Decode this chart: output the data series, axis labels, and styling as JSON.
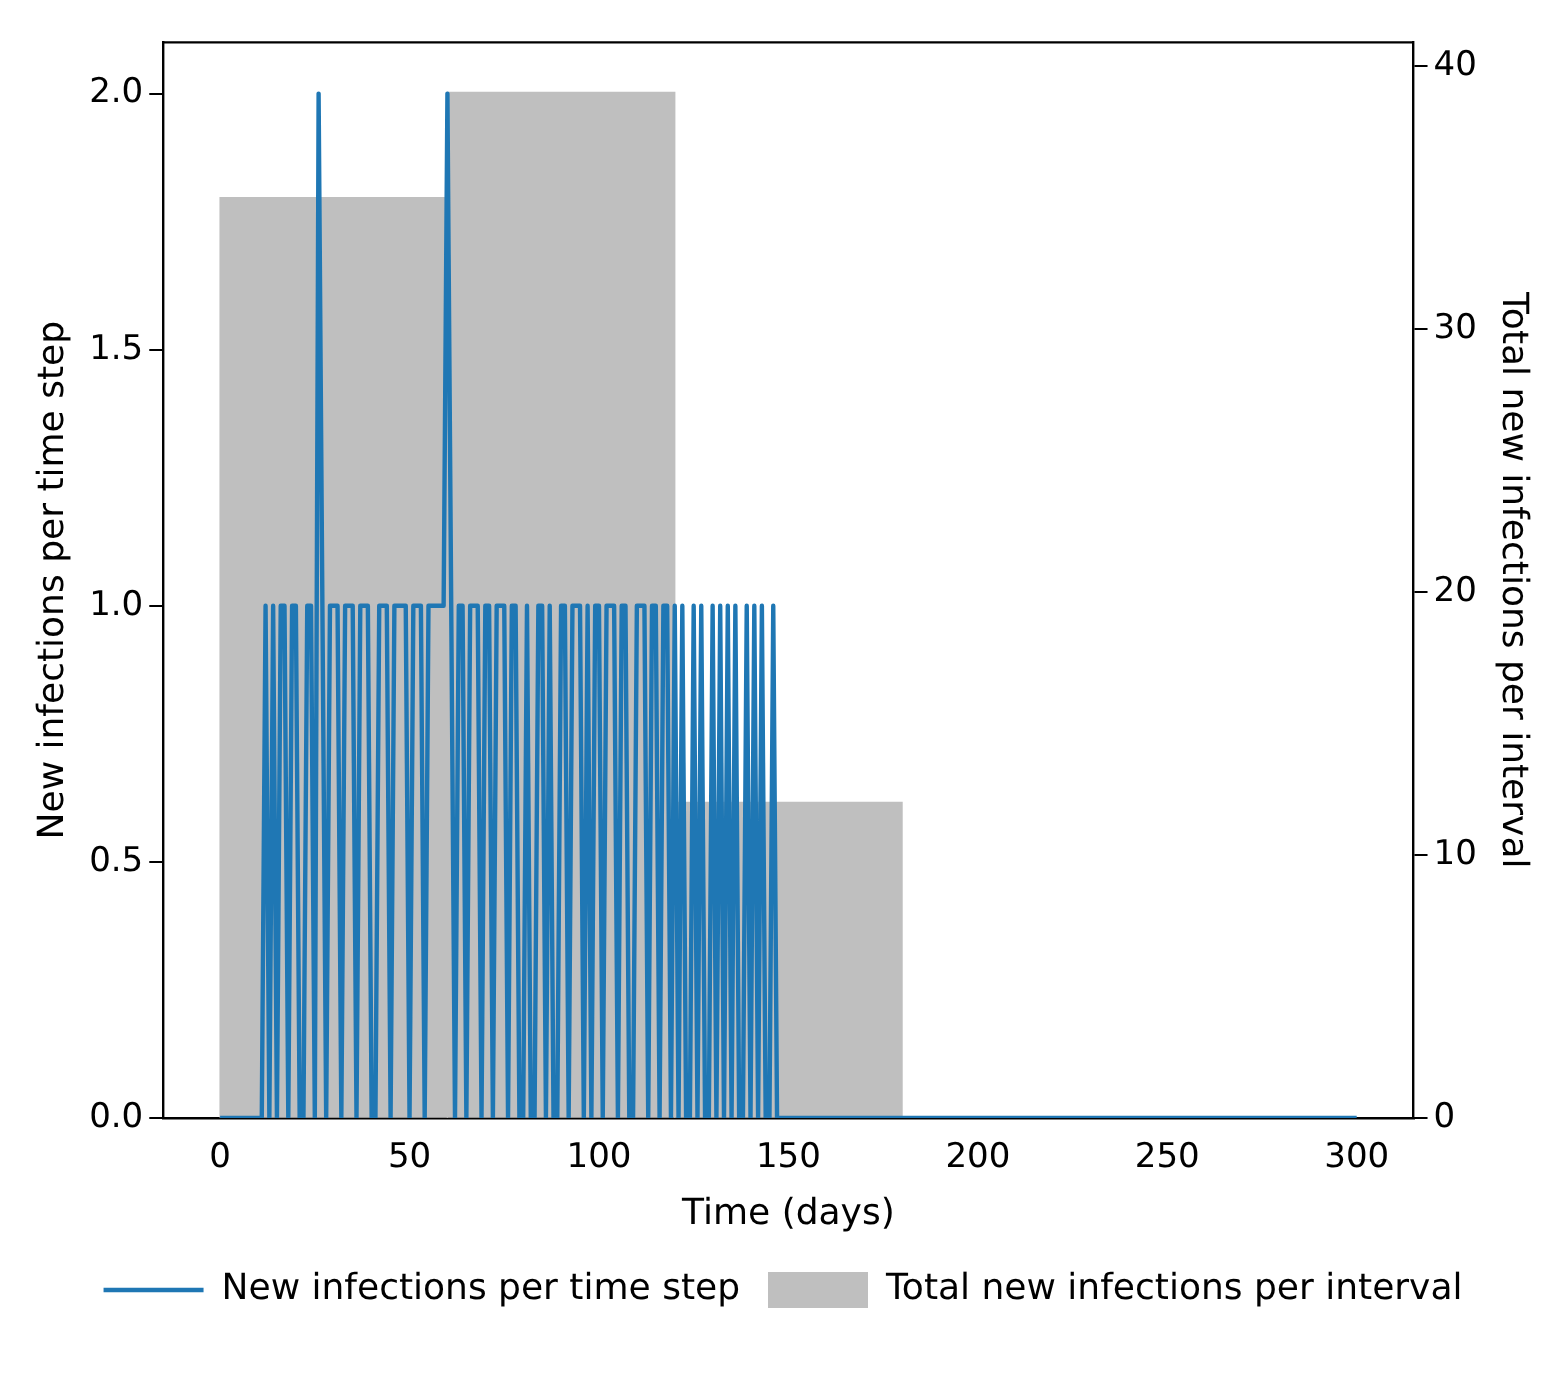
{
  "chart_data": {
    "type": "line",
    "xlabel": "Time (days)",
    "ylabel": "New infections per time step",
    "y2label": "Total new infections per interval",
    "xlim": [
      -15,
      315
    ],
    "xticks": [
      0,
      50,
      100,
      150,
      200,
      250,
      300
    ],
    "ylim": [
      0,
      2.1
    ],
    "yticks": [
      {
        "value": 0,
        "label": "0.0"
      },
      0.5,
      {
        "value": 1,
        "label": "1.0"
      },
      1.5,
      {
        "value": 2,
        "label": "2.0"
      }
    ],
    "y2lim": [
      0,
      40.9
    ],
    "y2ticks": [
      0,
      10,
      20,
      30,
      40
    ],
    "grid": false,
    "legend": "bottom",
    "marker": "none",
    "line_style": "solid",
    "series": [
      {
        "name": "New infections per time step",
        "color": "#1f77b4",
        "x": [
          0,
          11,
          12,
          13,
          14,
          15,
          16,
          17,
          18,
          19,
          20,
          21,
          22,
          23,
          24,
          25,
          26,
          27,
          28,
          29,
          30,
          31,
          32,
          33,
          34,
          35,
          36,
          37,
          38,
          39,
          40,
          41,
          42,
          43,
          44,
          45,
          46,
          47,
          48,
          49,
          50,
          51,
          52,
          53,
          54,
          55,
          56,
          57,
          58,
          59,
          60,
          61,
          62,
          63,
          64,
          65,
          66,
          67,
          68,
          69,
          70,
          71,
          72,
          73,
          74,
          75,
          76,
          77,
          78,
          79,
          80,
          81,
          82,
          83,
          84,
          85,
          86,
          87,
          88,
          89,
          90,
          91,
          92,
          93,
          94,
          95,
          96,
          97,
          98,
          99,
          100,
          101,
          102,
          103,
          104,
          105,
          106,
          107,
          108,
          109,
          110,
          111,
          112,
          113,
          114,
          115,
          116,
          117,
          118,
          119,
          120,
          121,
          122,
          123,
          124,
          125,
          126,
          127,
          128,
          129,
          130,
          131,
          132,
          133,
          134,
          135,
          136,
          137,
          138,
          139,
          140,
          141,
          142,
          143,
          144,
          145,
          146,
          147,
          300
        ],
        "values": [
          0,
          0,
          1,
          0,
          1,
          0,
          1,
          1,
          0,
          1,
          1,
          0,
          0,
          1,
          1,
          0,
          2,
          1,
          0,
          1,
          1,
          1,
          0,
          1,
          1,
          1,
          0,
          1,
          1,
          1,
          0,
          0,
          1,
          1,
          1,
          0,
          1,
          1,
          1,
          1,
          0,
          1,
          1,
          1,
          0,
          1,
          1,
          1,
          1,
          1,
          2,
          1,
          0,
          1,
          1,
          0,
          1,
          1,
          1,
          0,
          1,
          1,
          0,
          1,
          1,
          1,
          0,
          1,
          1,
          0,
          0,
          1,
          0,
          0,
          1,
          1,
          0,
          1,
          0,
          0,
          1,
          1,
          0,
          1,
          1,
          1,
          0,
          1,
          0,
          1,
          1,
          0,
          1,
          1,
          1,
          0,
          1,
          1,
          0,
          0,
          1,
          1,
          1,
          0,
          1,
          1,
          0,
          1,
          1,
          0,
          1,
          0,
          1,
          0,
          0,
          1,
          0,
          1,
          0,
          0,
          1,
          0,
          1,
          0,
          1,
          0,
          1,
          0,
          0,
          1,
          0,
          1,
          0,
          1,
          0,
          0,
          1,
          0,
          0
        ]
      },
      {
        "name": "Total new infections per interval",
        "type": "histogram",
        "axis": "y2",
        "color": "#bfbfbf",
        "bins": [
          0,
          60,
          120,
          180
        ],
        "values": [
          35,
          39,
          12
        ]
      }
    ]
  }
}
